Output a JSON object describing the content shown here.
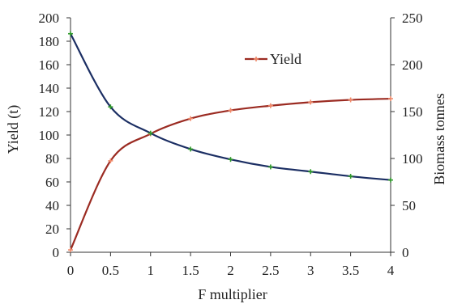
{
  "chart_data": {
    "type": "line",
    "xlabel": "F multiplier",
    "ylabel_left": "Yield (t)",
    "ylabel_right": "Biomass tonnes",
    "xlim": [
      0,
      4
    ],
    "ylim_left": [
      0,
      200
    ],
    "ylim_right": [
      0,
      250
    ],
    "x_ticks": [
      "0",
      "0.5",
      "1",
      "1.5",
      "2",
      "2.5",
      "3",
      "3.5",
      "4"
    ],
    "y_ticks_left": [
      "0",
      "20",
      "40",
      "60",
      "80",
      "100",
      "120",
      "140",
      "160",
      "180",
      "200"
    ],
    "y_ticks_right": [
      "0",
      "50",
      "100",
      "150",
      "200",
      "250"
    ],
    "grid": false,
    "legend_position": "top-right",
    "series": [
      {
        "name": "Yield",
        "axis": "left",
        "color": "#9b2b22",
        "marker_color": "#f08a6a",
        "x": [
          0,
          0.5,
          1,
          1.5,
          2,
          2.5,
          3,
          3.5,
          4
        ],
        "y": [
          2,
          78,
          101,
          114,
          121,
          125,
          128,
          130,
          131
        ]
      },
      {
        "axis": "right",
        "color": "#1b2e63",
        "marker_color": "#2f9a2a",
        "x": [
          0,
          0.5,
          1,
          1.5,
          2,
          2.5,
          3,
          3.5,
          4
        ],
        "y": [
          233,
          155,
          127,
          110,
          99,
          91,
          86,
          81,
          77
        ]
      }
    ]
  }
}
